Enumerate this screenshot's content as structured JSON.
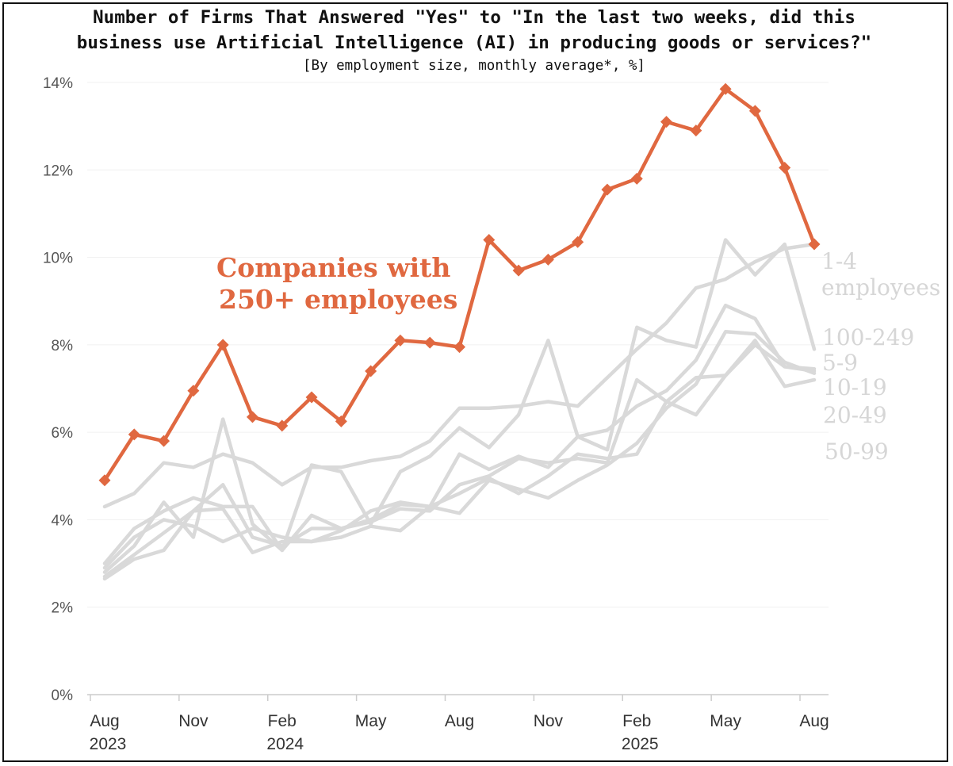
{
  "title_line1": "Number of Firms That Answered \"Yes\" to \"In the last two weeks, did this",
  "title_line2": "business use Artificial Intelligence (AI) in producing goods or services?\"",
  "subtitle": "[By employment size, monthly average*, %]",
  "colors": {
    "highlight": "#e06840",
    "others": "#d9d9d9",
    "others_label": "#d6d6d6"
  },
  "chart_data": {
    "type": "line",
    "x": [
      "2023-08",
      "2023-09",
      "2023-10",
      "2023-11",
      "2023-12",
      "2024-01",
      "2024-02",
      "2024-03",
      "2024-04",
      "2024-05",
      "2024-06",
      "2024-07",
      "2024-08",
      "2024-09",
      "2024-10",
      "2024-11",
      "2024-12",
      "2025-01",
      "2025-02",
      "2025-03",
      "2025-04",
      "2025-05",
      "2025-06",
      "2025-07",
      "2025-08"
    ],
    "ylim": [
      0,
      14
    ],
    "ytick_values": [
      0,
      2,
      4,
      6,
      8,
      10,
      12,
      14
    ],
    "ytick_labels": [
      "0%",
      "2%",
      "4%",
      "6%",
      "8%",
      "10%",
      "12%",
      "14%"
    ],
    "xticks": [
      {
        "x": "2023-08",
        "label": "Aug"
      },
      {
        "x": "2023-11",
        "label": "Nov"
      },
      {
        "x": "2024-02",
        "label": "Feb"
      },
      {
        "x": "2024-05",
        "label": "May"
      },
      {
        "x": "2024-08",
        "label": "Aug"
      },
      {
        "x": "2024-11",
        "label": "Nov"
      },
      {
        "x": "2025-02",
        "label": "Feb"
      },
      {
        "x": "2025-05",
        "label": "May"
      },
      {
        "x": "2025-08",
        "label": "Aug"
      }
    ],
    "year_labels": [
      {
        "x": "2023-08",
        "label": "2023"
      },
      {
        "x": "2024-02",
        "label": "2024"
      },
      {
        "x": "2025-02",
        "label": "2025"
      }
    ],
    "grid": true,
    "highlight": {
      "name_line1": "Companies with",
      "name_line2": "250+ employees",
      "values": [
        4.9,
        5.95,
        5.8,
        6.95,
        8.0,
        6.35,
        6.15,
        6.8,
        6.25,
        7.4,
        8.1,
        8.05,
        7.95,
        10.4,
        9.7,
        9.95,
        10.35,
        11.55,
        11.8,
        13.1,
        12.9,
        13.85,
        13.35,
        12.05,
        10.3
      ]
    },
    "series": [
      {
        "name_line1": "1-4",
        "name_line2": "employees",
        "values": [
          4.3,
          4.6,
          5.3,
          5.2,
          5.5,
          5.3,
          4.8,
          5.2,
          5.2,
          5.35,
          5.45,
          5.8,
          6.55,
          6.55,
          6.6,
          6.7,
          6.6,
          7.25,
          7.9,
          8.5,
          9.3,
          9.5,
          9.9,
          10.2,
          10.3
        ]
      },
      {
        "name": "100-249",
        "values": [
          2.8,
          3.4,
          4.4,
          3.6,
          6.3,
          3.9,
          3.3,
          5.25,
          5.1,
          3.9,
          5.1,
          5.45,
          6.1,
          5.65,
          6.4,
          8.1,
          5.9,
          5.6,
          8.4,
          8.1,
          7.95,
          10.4,
          9.6,
          10.3,
          7.9
        ]
      },
      {
        "name": "5-9",
        "values": [
          3.0,
          3.8,
          4.2,
          4.5,
          4.3,
          4.3,
          3.3,
          4.1,
          3.8,
          3.95,
          4.25,
          4.2,
          4.8,
          5.0,
          5.4,
          5.3,
          5.4,
          5.3,
          7.2,
          6.7,
          6.4,
          7.3,
          8.0,
          7.5,
          7.4
        ]
      },
      {
        "name": "10-19",
        "values": [
          2.9,
          3.6,
          4.0,
          3.85,
          3.5,
          3.8,
          3.6,
          3.5,
          3.75,
          4.2,
          4.4,
          4.3,
          4.6,
          4.95,
          4.6,
          5.0,
          5.5,
          5.4,
          5.5,
          6.7,
          7.25,
          7.3,
          8.1,
          7.05,
          7.2
        ]
      },
      {
        "name": "20-49",
        "values": [
          2.7,
          3.2,
          3.7,
          4.2,
          4.8,
          3.6,
          3.4,
          3.8,
          3.8,
          4.0,
          4.35,
          4.3,
          5.5,
          5.15,
          5.45,
          5.2,
          5.9,
          6.05,
          6.6,
          6.95,
          7.65,
          8.9,
          8.6,
          7.5,
          7.45
        ]
      },
      {
        "name": "50-99",
        "values": [
          2.65,
          3.1,
          3.3,
          4.2,
          4.25,
          3.25,
          3.5,
          3.5,
          3.6,
          3.85,
          3.75,
          4.3,
          4.15,
          4.9,
          4.7,
          4.5,
          4.9,
          5.25,
          5.75,
          6.55,
          7.1,
          8.3,
          8.25,
          7.6,
          7.35
        ]
      }
    ]
  }
}
